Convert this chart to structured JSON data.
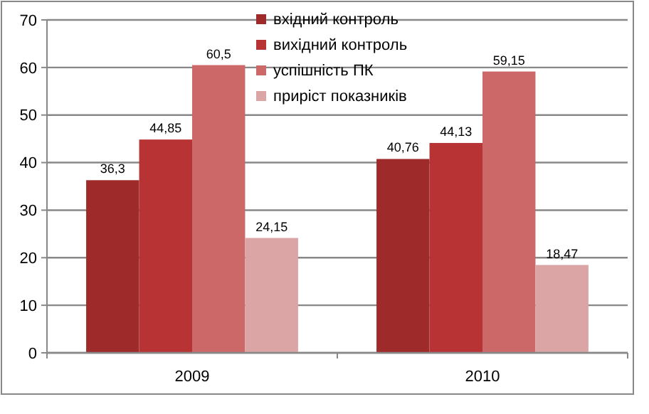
{
  "chart_data": {
    "type": "bar",
    "categories": [
      "2009",
      "2010"
    ],
    "series": [
      {
        "name": "вхідний контроль",
        "color": "#9e2a2a",
        "values": [
          36.3,
          40.76
        ],
        "value_labels": [
          "36,3",
          "40,76"
        ]
      },
      {
        "name": "вихідний контроль",
        "color": "#b83434",
        "values": [
          44.85,
          44.13
        ],
        "value_labels": [
          "44,85",
          "44,13"
        ]
      },
      {
        "name": "успішність ПК",
        "color": "#cd6868",
        "values": [
          60.5,
          59.15
        ],
        "value_labels": [
          "60,5",
          "59,15"
        ]
      },
      {
        "name": "приріст показників",
        "color": "#dba5a5",
        "values": [
          24.15,
          18.47
        ],
        "value_labels": [
          "24,15",
          "18,47"
        ]
      }
    ],
    "ylim": [
      0,
      70
    ],
    "yticks": [
      0,
      10,
      20,
      30,
      40,
      50,
      60,
      70
    ],
    "grid": "y",
    "legend": "top right"
  }
}
